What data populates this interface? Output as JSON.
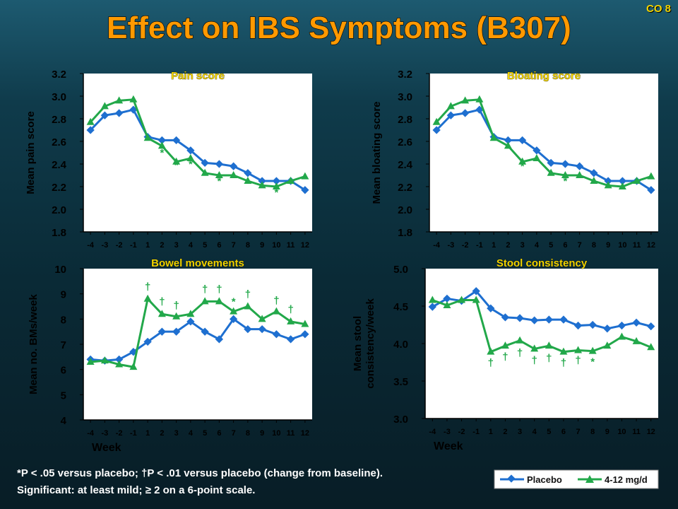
{
  "slide": {
    "title": "Effect on IBS Symptoms (B307)",
    "corner_tag": "CO 8",
    "footnote_line1": "*P < .05 versus placebo; †P < .01 versus placebo (change from baseline).",
    "footnote_line2": "Significant: at least mild; ≥ 2 on a 6-point scale.",
    "legend": [
      "Placebo",
      "4-12 mg/d"
    ]
  },
  "colors": {
    "title": "#ff9900",
    "panel_title": "#f2d400",
    "text": "#ffffff",
    "plot_bg": "#ffffff",
    "placebo": "#1e6fd0",
    "active": "#22a84a",
    "marks": "#22a84a"
  },
  "chart_data": [
    {
      "type": "line",
      "title": "Pain score",
      "xlabel": "",
      "ylabel": "Mean pain score",
      "x": [
        "-4",
        "-3",
        "-2",
        "-1",
        "1",
        "2",
        "3",
        "4",
        "5",
        "6",
        "7",
        "8",
        "9",
        "10",
        "11",
        "12"
      ],
      "ylim": [
        1.8,
        3.2
      ],
      "yticks": [
        "1.8",
        "2.0",
        "2.2",
        "2.4",
        "2.6",
        "2.8",
        "3.0",
        "3.2"
      ],
      "series": [
        {
          "name": "Placebo",
          "values": [
            2.7,
            2.83,
            2.85,
            2.88,
            2.64,
            2.61,
            2.61,
            2.52,
            2.41,
            2.4,
            2.38,
            2.32,
            2.25,
            2.25,
            2.25,
            2.17
          ]
        },
        {
          "name": "4-12 mg/d",
          "values": [
            2.77,
            2.91,
            2.96,
            2.97,
            2.63,
            2.56,
            2.42,
            2.45,
            2.32,
            2.3,
            2.3,
            2.25,
            2.21,
            2.2,
            2.25,
            2.29
          ]
        }
      ],
      "annotations": [
        {
          "x": "2",
          "y": 2.47,
          "text": "*"
        },
        {
          "x": "3",
          "y": 2.36,
          "text": "*"
        },
        {
          "x": "4",
          "y": 2.37,
          "text": "*"
        },
        {
          "x": "6",
          "y": 2.22,
          "text": "*"
        },
        {
          "x": "10",
          "y": 2.12,
          "text": "*"
        }
      ]
    },
    {
      "type": "line",
      "title": "Bloating score",
      "xlabel": "",
      "ylabel": "Mean bloating score",
      "x": [
        "-4",
        "-3",
        "-2",
        "-1",
        "1",
        "2",
        "3",
        "4",
        "5",
        "6",
        "7",
        "8",
        "9",
        "10",
        "11",
        "12"
      ],
      "ylim": [
        1.8,
        3.2
      ],
      "yticks": [
        "1.8",
        "2.0",
        "2.2",
        "2.4",
        "2.6",
        "2.8",
        "3.0",
        "3.2"
      ],
      "series": [
        {
          "name": "Placebo",
          "values": [
            2.7,
            2.83,
            2.85,
            2.88,
            2.64,
            2.61,
            2.61,
            2.52,
            2.41,
            2.4,
            2.38,
            2.32,
            2.25,
            2.25,
            2.25,
            2.17
          ]
        },
        {
          "name": "4-12 mg/d",
          "values": [
            2.77,
            2.91,
            2.96,
            2.97,
            2.63,
            2.56,
            2.42,
            2.45,
            2.32,
            2.3,
            2.3,
            2.25,
            2.21,
            2.2,
            2.25,
            2.29
          ]
        }
      ],
      "annotations": [
        {
          "x": "3",
          "y": 2.35,
          "text": "*"
        },
        {
          "x": "6",
          "y": 2.22,
          "text": "*"
        }
      ]
    },
    {
      "type": "line",
      "title": "Bowel movements",
      "xlabel": "Week",
      "ylabel": "Mean no. BMs/week",
      "x": [
        "-4",
        "-3",
        "-2",
        "-1",
        "1",
        "2",
        "3",
        "4",
        "5",
        "6",
        "7",
        "8",
        "9",
        "10",
        "11",
        "12"
      ],
      "ylim": [
        4,
        10
      ],
      "yticks": [
        "4",
        "5",
        "6",
        "7",
        "8",
        "9",
        "10"
      ],
      "series": [
        {
          "name": "Placebo",
          "values": [
            6.4,
            6.35,
            6.4,
            6.7,
            7.1,
            7.5,
            7.5,
            7.9,
            7.5,
            7.2,
            8.0,
            7.6,
            7.6,
            7.4,
            7.2,
            7.4
          ]
        },
        {
          "name": "4-12 mg/d",
          "values": [
            6.3,
            6.35,
            6.2,
            6.1,
            8.8,
            8.2,
            8.1,
            8.2,
            8.7,
            8.7,
            8.3,
            8.5,
            8.0,
            8.3,
            7.9,
            7.8
          ]
        }
      ],
      "annotations": [
        {
          "x": "1",
          "y": 9.15,
          "text": "†"
        },
        {
          "x": "2",
          "y": 8.55,
          "text": "†"
        },
        {
          "x": "3",
          "y": 8.4,
          "text": "†"
        },
        {
          "x": "5",
          "y": 9.05,
          "text": "†"
        },
        {
          "x": "6",
          "y": 9.05,
          "text": "†"
        },
        {
          "x": "7",
          "y": 8.55,
          "text": "*"
        },
        {
          "x": "8",
          "y": 8.85,
          "text": "†"
        },
        {
          "x": "10",
          "y": 8.6,
          "text": "†"
        },
        {
          "x": "11",
          "y": 8.25,
          "text": "†"
        }
      ]
    },
    {
      "type": "line",
      "title": "Stool consistency",
      "xlabel": "Week",
      "ylabel": "Mean stool\nconsistency/week",
      "x": [
        "-4",
        "-3",
        "-2",
        "-1",
        "1",
        "2",
        "3",
        "4",
        "5",
        "6",
        "7",
        "8",
        "9",
        "10",
        "11",
        "12"
      ],
      "ylim": [
        3.0,
        5.0
      ],
      "yticks": [
        "3.0",
        "3.5",
        "4.0",
        "4.5",
        "5.0"
      ],
      "series": [
        {
          "name": "Placebo",
          "values": [
            4.49,
            4.6,
            4.57,
            4.7,
            4.47,
            4.35,
            4.34,
            4.31,
            4.32,
            4.32,
            4.24,
            4.25,
            4.2,
            4.24,
            4.28,
            4.23
          ]
        },
        {
          "name": "4-12 mg/d",
          "values": [
            4.58,
            4.51,
            4.58,
            4.58,
            3.89,
            3.97,
            4.04,
            3.93,
            3.97,
            3.89,
            3.91,
            3.9,
            3.97,
            4.09,
            4.03,
            3.95
          ]
        }
      ],
      "annotations": [
        {
          "x": "1",
          "y": 3.7,
          "text": "†"
        },
        {
          "x": "2",
          "y": 3.78,
          "text": "†"
        },
        {
          "x": "3",
          "y": 3.83,
          "text": "†"
        },
        {
          "x": "4",
          "y": 3.73,
          "text": "†"
        },
        {
          "x": "5",
          "y": 3.76,
          "text": "†"
        },
        {
          "x": "6",
          "y": 3.7,
          "text": "†"
        },
        {
          "x": "7",
          "y": 3.73,
          "text": "†"
        },
        {
          "x": "8",
          "y": 3.71,
          "text": "*"
        }
      ]
    }
  ]
}
